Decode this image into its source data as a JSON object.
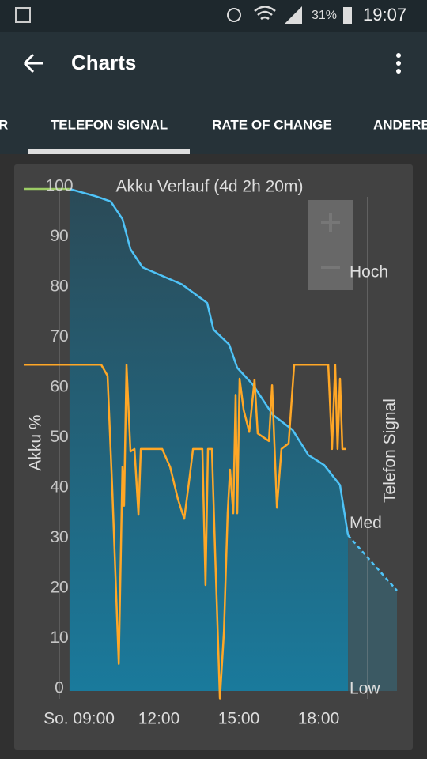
{
  "status_bar": {
    "battery": "31%",
    "time": "19:07"
  },
  "app_bar": {
    "title": "Charts"
  },
  "tabs": [
    "R",
    "TELEFON SIGNAL",
    "RATE OF CHANGE",
    "ANDERE"
  ],
  "chart_data": {
    "type": "line",
    "title": "Akku Verlauf (4d 2h 20m)",
    "y_label": "Akku %",
    "y2_label": "Telefon Signal",
    "xlim": [
      6.92,
      20.94
    ],
    "xticks": [
      {
        "value": 9,
        "label": "So. 09:00"
      },
      {
        "value": 12,
        "label": "12:00"
      },
      {
        "value": 15,
        "label": "15:00"
      },
      {
        "value": 18,
        "label": "18:00"
      }
    ],
    "ylim": [
      0,
      100
    ],
    "yticks": [
      0,
      10,
      20,
      30,
      40,
      50,
      60,
      70,
      80,
      90,
      100
    ],
    "y2lim": [
      0,
      100
    ],
    "y2ticks": [
      {
        "value": 0,
        "label": "Low"
      },
      {
        "value": 33,
        "label": "Med"
      },
      {
        "value": 83,
        "label": "Hoch"
      }
    ],
    "series": [
      {
        "color": "#9ccc65",
        "x": [
          6.92,
          8.64
        ],
        "values": [
          100,
          100
        ]
      },
      {
        "color": "#4fc3f7",
        "fill": true,
        "x": [
          8.64,
          9.59,
          10.19,
          10.63,
          10.93,
          11.38,
          12.86,
          13.81,
          14.05,
          14.64,
          14.94,
          15.53,
          16.28,
          17.02,
          17.61,
          18.21,
          18.8,
          19.1
        ],
        "values": [
          100,
          98.6,
          97.5,
          94,
          88,
          84.4,
          81,
          77.3,
          72,
          69,
          64.4,
          61,
          55,
          52,
          47,
          45,
          41,
          31
        ]
      },
      {
        "color": "#4fc3f7",
        "dash": true,
        "fill": true,
        "x": [
          19.1,
          20.94
        ],
        "values": [
          31,
          20
        ]
      },
      {
        "color": "#ffa726",
        "axis": "y2",
        "x": [
          6.92,
          9.83,
          10.07,
          10.25,
          10.49,
          10.63,
          10.69,
          10.78,
          10.93,
          11.08,
          11.23,
          11.32,
          12.12,
          12.42,
          12.71,
          12.95,
          13.16,
          13.28,
          13.63,
          13.75,
          13.84,
          13.99,
          14.11,
          14.29,
          14.44,
          14.58,
          14.67,
          14.79,
          14.88,
          14.94,
          15.03,
          15.18,
          15.39,
          15.59,
          15.71,
          16.13,
          16.25,
          16.43,
          16.6,
          16.87,
          17.08,
          18.36,
          18.5,
          18.62,
          18.71,
          18.8,
          18.89,
          19.04
        ],
        "values": [
          65,
          65,
          62.8,
          39.8,
          5.4,
          44.7,
          36.9,
          65,
          47.7,
          48.2,
          35.1,
          48.2,
          48.2,
          44.6,
          38.3,
          34.3,
          43,
          48.2,
          48.2,
          21.1,
          48.2,
          48.2,
          27.4,
          -1.5,
          11.8,
          35.4,
          44.1,
          35.4,
          59,
          35.4,
          62.2,
          56,
          51.6,
          62,
          51.3,
          49.8,
          60.9,
          36.5,
          48.2,
          49.3,
          65,
          65,
          48.2,
          65,
          48.2,
          62.2,
          48.2,
          48.2
        ]
      }
    ]
  }
}
